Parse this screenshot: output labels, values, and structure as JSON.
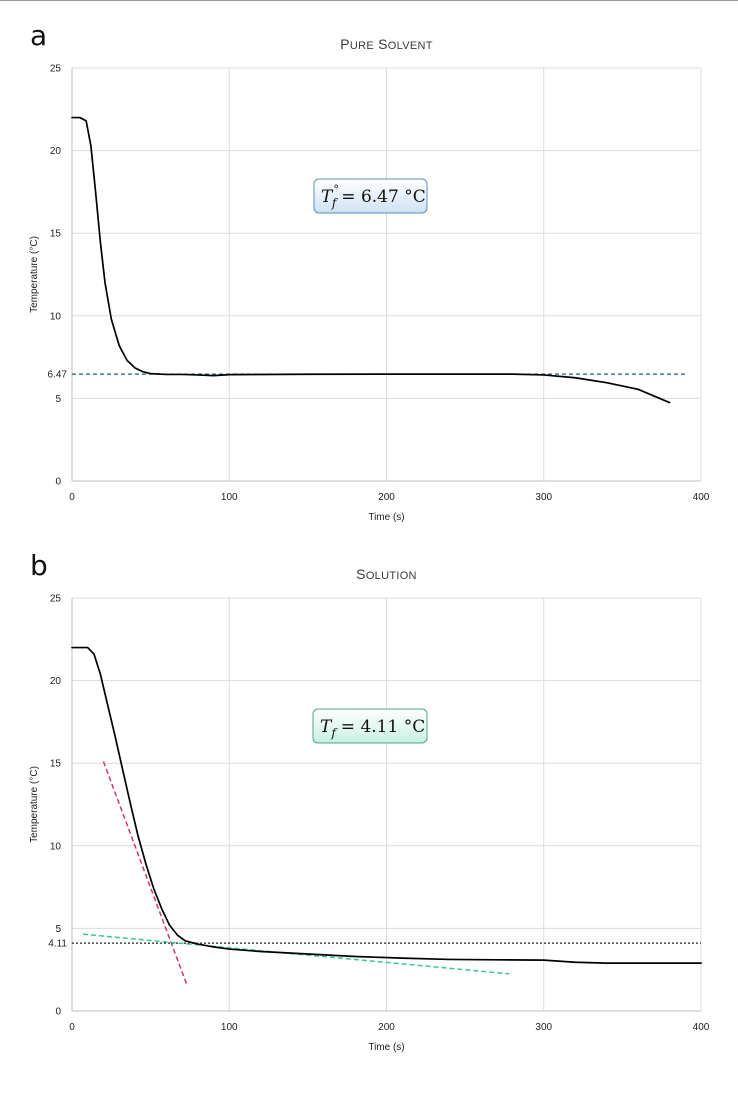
{
  "chart_data": [
    {
      "panel": "a",
      "type": "line",
      "title": "Pure Solvent",
      "xlabel": "Time (s)",
      "ylabel": "Temperature (°C)",
      "xlim": [
        0,
        400
      ],
      "ylim": [
        0,
        25
      ],
      "xticks": [
        0,
        100,
        200,
        300,
        400
      ],
      "yticks": [
        0,
        5,
        10,
        15,
        20,
        25
      ],
      "grid": true,
      "series": [
        {
          "name": "temperature",
          "color": "#000000",
          "points": [
            [
              0,
              22
            ],
            [
              5,
              22
            ],
            [
              9,
              21.8
            ],
            [
              12,
              20.3
            ],
            [
              15,
              17.5
            ],
            [
              18,
              14.5
            ],
            [
              21,
              12
            ],
            [
              25,
              9.8
            ],
            [
              30,
              8.2
            ],
            [
              35,
              7.3
            ],
            [
              40,
              6.85
            ],
            [
              45,
              6.62
            ],
            [
              50,
              6.5
            ],
            [
              60,
              6.45
            ],
            [
              70,
              6.45
            ],
            [
              80,
              6.42
            ],
            [
              90,
              6.38
            ],
            [
              100,
              6.44
            ],
            [
              150,
              6.46
            ],
            [
              200,
              6.47
            ],
            [
              250,
              6.47
            ],
            [
              280,
              6.47
            ],
            [
              300,
              6.42
            ],
            [
              320,
              6.25
            ],
            [
              340,
              5.95
            ],
            [
              360,
              5.55
            ],
            [
              380,
              4.75
            ]
          ]
        }
      ],
      "reference_lines": [
        {
          "name": "Tf line",
          "y": 6.47,
          "x_range": [
            0,
            390
          ],
          "color": "#1f5f7a",
          "style": "dashed",
          "tick_label": "6.47"
        }
      ],
      "annotation": {
        "label": "T°f = 6.47 °C",
        "symbol": "T",
        "superscript": "°",
        "subscript": "f",
        "value": "= 6.47 °C",
        "fill": "#cfe2f3",
        "stroke": "#5f8fb8"
      }
    },
    {
      "panel": "b",
      "type": "line",
      "title": "Solution",
      "xlabel": "Time (s)",
      "ylabel": "Temperature (°C)",
      "xlim": [
        0,
        400
      ],
      "ylim": [
        0,
        25
      ],
      "xticks": [
        0,
        100,
        200,
        300,
        400
      ],
      "yticks": [
        0,
        5,
        10,
        15,
        20,
        25
      ],
      "grid": true,
      "series": [
        {
          "name": "temperature",
          "color": "#000000",
          "points": [
            [
              0,
              22
            ],
            [
              10,
              22
            ],
            [
              14,
              21.6
            ],
            [
              18,
              20.4
            ],
            [
              22,
              18.8
            ],
            [
              27,
              16.8
            ],
            [
              32,
              14.7
            ],
            [
              37,
              12.6
            ],
            [
              42,
              10.6
            ],
            [
              47,
              8.9
            ],
            [
              52,
              7.4
            ],
            [
              57,
              6.2
            ],
            [
              62,
              5.2
            ],
            [
              67,
              4.6
            ],
            [
              72,
              4.25
            ],
            [
              80,
              4.05
            ],
            [
              90,
              3.88
            ],
            [
              100,
              3.75
            ],
            [
              120,
              3.6
            ],
            [
              150,
              3.45
            ],
            [
              180,
              3.3
            ],
            [
              210,
              3.2
            ],
            [
              240,
              3.12
            ],
            [
              270,
              3.1
            ],
            [
              300,
              3.08
            ],
            [
              320,
              2.95
            ],
            [
              340,
              2.9
            ],
            [
              370,
              2.9
            ],
            [
              400,
              2.9
            ]
          ]
        }
      ],
      "reference_lines": [
        {
          "name": "Tf line",
          "y": 4.11,
          "x_range": [
            0,
            400
          ],
          "color": "#222222",
          "style": "dotted",
          "tick_label": "4.11"
        }
      ],
      "fit_lines": [
        {
          "name": "cooling-slope fit",
          "color": "#d6336c",
          "style": "dashed",
          "from": [
            20,
            15.1
          ],
          "to": [
            73,
            1.6
          ]
        },
        {
          "name": "supercooled-trend fit",
          "color": "#3cc4a0",
          "style": "dashed",
          "from": [
            7,
            4.65
          ],
          "to": [
            278,
            2.25
          ]
        }
      ],
      "annotation": {
        "label": "Tf = 4.11 °C",
        "symbol": "T",
        "superscript": "",
        "subscript": "f",
        "value": "= 4.11 °C",
        "fill": "#c8f0e3",
        "stroke": "#4fa789"
      }
    }
  ]
}
